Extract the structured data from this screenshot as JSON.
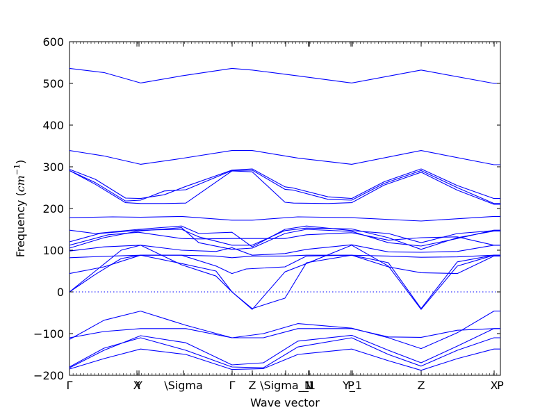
{
  "chart_data": {
    "type": "line",
    "title": "",
    "xlabel": "Wave vector",
    "ylabel_text": "Frequency (",
    "ylabel_unit_base": "cm",
    "ylabel_unit_exp": "−1",
    "ylabel_close": ")",
    "xlim": [
      0,
      1
    ],
    "ylim": [
      -200,
      600
    ],
    "yticks": [
      {
        "value": -200,
        "label": "−200"
      },
      {
        "value": -100,
        "label": "−100"
      },
      {
        "value": 0,
        "label": "0"
      },
      {
        "value": 100,
        "label": "100"
      },
      {
        "value": 200,
        "label": "200"
      },
      {
        "value": 300,
        "label": "300"
      },
      {
        "value": 400,
        "label": "400"
      },
      {
        "value": 500,
        "label": "500"
      },
      {
        "value": 600,
        "label": "600"
      }
    ],
    "xticks": [
      {
        "pos": 0.0,
        "label": "Γ"
      },
      {
        "pos": 0.1565,
        "label": "X"
      },
      {
        "pos": 0.1613,
        "label": "Y"
      },
      {
        "pos": 0.2645,
        "label": "\\Sigma"
      },
      {
        "pos": 0.3774,
        "label": "Γ"
      },
      {
        "pos": 0.4242,
        "label": "Z"
      },
      {
        "pos": 0.5016,
        "label": "\\Sigma_1"
      },
      {
        "pos": 0.5548,
        "label": "N"
      },
      {
        "pos": 0.5565,
        "label": "_1"
      },
      {
        "pos": 0.6532,
        "label": "P"
      },
      {
        "pos": 0.6565,
        "label": "Y_1"
      },
      {
        "pos": 0.8161,
        "label": "Z"
      },
      {
        "pos": 0.9855,
        "label": "X"
      },
      {
        "pos": 1.0,
        "label": "P"
      }
    ],
    "zero_line": 0,
    "grid": false,
    "legend": "none",
    "line_color": "#0000ff",
    "zero_line_color": "#0000ff",
    "series": [
      {
        "x": [
          0.0,
          0.08,
          0.165,
          0.26,
          0.377,
          0.424,
          0.53,
          0.655,
          0.816,
          0.985,
          1.0
        ],
        "y": [
          536,
          526,
          501,
          518,
          536,
          532,
          518,
          501,
          532,
          500,
          500
        ]
      },
      {
        "x": [
          0.0,
          0.08,
          0.165,
          0.26,
          0.377,
          0.424,
          0.53,
          0.655,
          0.816,
          0.985,
          1.0
        ],
        "y": [
          339,
          326,
          306,
          320,
          339,
          339,
          321,
          306,
          339,
          305,
          305
        ]
      },
      {
        "x": [
          0.0,
          0.06,
          0.13,
          0.165,
          0.22,
          0.27,
          0.377,
          0.424,
          0.5,
          0.52,
          0.6,
          0.655,
          0.73,
          0.816,
          0.9,
          0.985,
          1.0
        ],
        "y": [
          294,
          270,
          225,
          224,
          233,
          253,
          292,
          295,
          252,
          249,
          228,
          224,
          264,
          295,
          255,
          224,
          224
        ]
      },
      {
        "x": [
          0.0,
          0.06,
          0.13,
          0.165,
          0.22,
          0.27,
          0.377,
          0.424,
          0.5,
          0.52,
          0.6,
          0.655,
          0.73,
          0.816,
          0.9,
          0.985,
          1.0
        ],
        "y": [
          291,
          262,
          218,
          220,
          242,
          245,
          291,
          292,
          246,
          244,
          222,
          220,
          260,
          291,
          250,
          212,
          212
        ]
      },
      {
        "x": [
          0.0,
          0.06,
          0.13,
          0.165,
          0.22,
          0.27,
          0.377,
          0.424,
          0.5,
          0.52,
          0.6,
          0.655,
          0.73,
          0.816,
          0.9,
          0.985,
          1.0
        ],
        "y": [
          291,
          258,
          214,
          212,
          212,
          213,
          290,
          288,
          215,
          213,
          212,
          214,
          256,
          287,
          244,
          210,
          210
        ]
      },
      {
        "x": [
          0.0,
          0.1,
          0.165,
          0.26,
          0.377,
          0.424,
          0.53,
          0.655,
          0.816,
          0.985,
          1.0
        ],
        "y": [
          178,
          180,
          179,
          181,
          172,
          172,
          180,
          178,
          170,
          181,
          181
        ]
      },
      {
        "x": [
          0.0,
          0.06,
          0.16,
          0.26,
          0.3,
          0.377,
          0.424,
          0.5,
          0.55,
          0.655,
          0.74,
          0.816,
          0.9,
          0.985,
          1.0
        ],
        "y": [
          148,
          140,
          150,
          158,
          140,
          143,
          108,
          150,
          158,
          147,
          140,
          118,
          140,
          147,
          147
        ]
      },
      {
        "x": [
          0.0,
          0.07,
          0.16,
          0.26,
          0.3,
          0.377,
          0.424,
          0.5,
          0.55,
          0.655,
          0.74,
          0.816,
          0.9,
          0.985,
          1.0
        ],
        "y": [
          120,
          140,
          148,
          150,
          132,
          112,
          112,
          147,
          153,
          151,
          130,
          102,
          130,
          146,
          146
        ]
      },
      {
        "x": [
          0.0,
          0.08,
          0.16,
          0.26,
          0.3,
          0.377,
          0.424,
          0.5,
          0.55,
          0.655,
          0.74,
          0.816,
          0.9,
          0.985,
          1.0
        ],
        "y": [
          105,
          130,
          146,
          154,
          118,
          102,
          105,
          140,
          150,
          145,
          118,
          110,
          128,
          148,
          148
        ]
      },
      {
        "x": [
          0.0,
          0.09,
          0.16,
          0.26,
          0.3,
          0.377,
          0.424,
          0.5,
          0.55,
          0.655,
          0.74,
          0.816,
          0.9,
          0.985,
          1.0
        ],
        "y": [
          112,
          137,
          143,
          128,
          127,
          128,
          128,
          128,
          137,
          142,
          124,
          130,
          132,
          112,
          112
        ]
      },
      {
        "x": [
          0.0,
          0.08,
          0.165,
          0.26,
          0.34,
          0.377,
          0.424,
          0.5,
          0.55,
          0.655,
          0.74,
          0.816,
          0.9,
          0.985,
          1.0
        ],
        "y": [
          98,
          108,
          112,
          100,
          97,
          106,
          88,
          92,
          102,
          113,
          96,
          95,
          97,
          112,
          112
        ]
      },
      {
        "x": [
          0.0,
          0.1,
          0.165,
          0.26,
          0.34,
          0.377,
          0.424,
          0.5,
          0.55,
          0.655,
          0.74,
          0.816,
          0.9,
          0.985,
          1.0
        ],
        "y": [
          82,
          86,
          88,
          88,
          86,
          82,
          86,
          86,
          88,
          88,
          86,
          83,
          84,
          88,
          88
        ]
      },
      {
        "x": [
          0.0,
          0.06,
          0.12,
          0.165,
          0.26,
          0.34,
          0.377,
          0.424,
          0.5,
          0.55,
          0.655,
          0.74,
          0.816,
          0.9,
          0.985,
          1.0
        ],
        "y": [
          0,
          42,
          80,
          88,
          68,
          50,
          0,
          -40,
          -15,
          70,
          88,
          70,
          -40,
          72,
          88,
          88
        ]
      },
      {
        "x": [
          0.0,
          0.06,
          0.12,
          0.165,
          0.26,
          0.34,
          0.377,
          0.424,
          0.5,
          0.55,
          0.655,
          0.74,
          0.816,
          0.9,
          0.985,
          1.0
        ],
        "y": [
          0,
          50,
          100,
          112,
          65,
          38,
          0,
          -42,
          48,
          68,
          112,
          62,
          -42,
          62,
          88,
          88
        ]
      },
      {
        "x": [
          0.0,
          0.08,
          0.165,
          0.26,
          0.34,
          0.377,
          0.41,
          0.5,
          0.55,
          0.655,
          0.74,
          0.816,
          0.9,
          0.985,
          1.0
        ],
        "y": [
          44,
          60,
          88,
          88,
          62,
          44,
          55,
          60,
          86,
          88,
          60,
          46,
          44,
          86,
          86
        ]
      },
      {
        "x": [
          0.0,
          0.08,
          0.165,
          0.27,
          0.377,
          0.45,
          0.53,
          0.655,
          0.74,
          0.816,
          0.9,
          0.985,
          1.0
        ],
        "y": [
          -114,
          -68,
          -46,
          -80,
          -110,
          -100,
          -76,
          -87,
          -110,
          -136,
          -98,
          -46,
          -46
        ]
      },
      {
        "x": [
          0.0,
          0.08,
          0.165,
          0.27,
          0.377,
          0.45,
          0.53,
          0.655,
          0.74,
          0.816,
          0.9,
          0.985,
          1.0
        ],
        "y": [
          -110,
          -95,
          -88,
          -88,
          -110,
          -110,
          -88,
          -88,
          -108,
          -109,
          -92,
          -88,
          -88
        ]
      },
      {
        "x": [
          0.0,
          0.08,
          0.165,
          0.27,
          0.377,
          0.45,
          0.53,
          0.655,
          0.74,
          0.816,
          0.9,
          0.985,
          1.0
        ],
        "y": [
          -182,
          -140,
          -105,
          -122,
          -175,
          -170,
          -118,
          -104,
          -140,
          -170,
          -130,
          -88,
          -88
        ]
      },
      {
        "x": [
          0.0,
          0.08,
          0.165,
          0.27,
          0.377,
          0.45,
          0.53,
          0.655,
          0.74,
          0.816,
          0.9,
          0.985,
          1.0
        ],
        "y": [
          -180,
          -135,
          -110,
          -140,
          -180,
          -182,
          -132,
          -110,
          -150,
          -178,
          -140,
          -110,
          -110
        ]
      },
      {
        "x": [
          0.0,
          0.08,
          0.165,
          0.27,
          0.377,
          0.45,
          0.53,
          0.655,
          0.74,
          0.816,
          0.9,
          0.985,
          1.0
        ],
        "y": [
          -185,
          -160,
          -137,
          -150,
          -186,
          -184,
          -150,
          -137,
          -165,
          -188,
          -160,
          -137,
          -137
        ]
      }
    ]
  }
}
